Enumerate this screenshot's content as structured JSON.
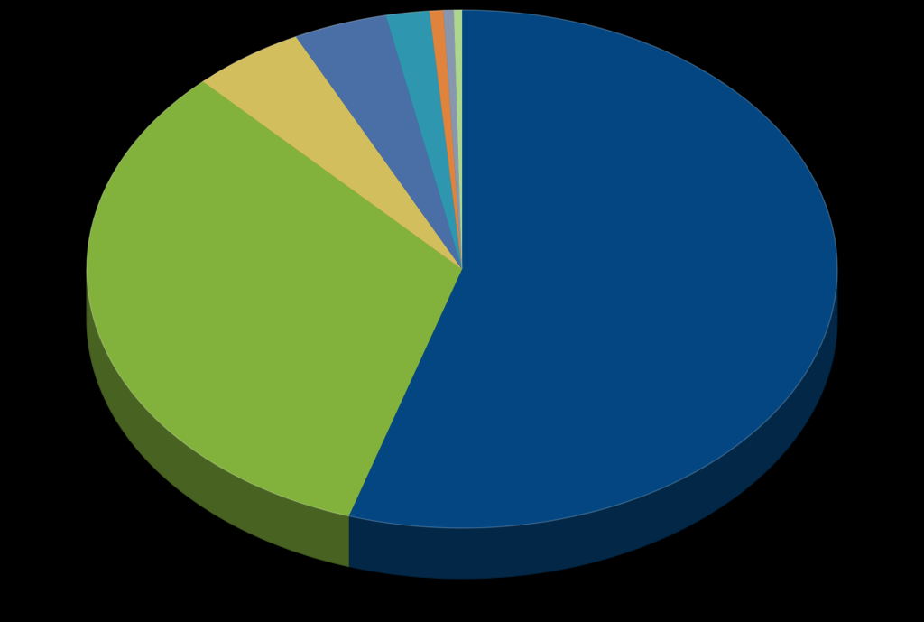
{
  "chart_data": {
    "type": "pie",
    "style": "3d",
    "title": "",
    "legend": "none",
    "data_labels": "none",
    "start_angle_deg": 0,
    "direction": "clockwise",
    "slices": [
      {
        "value": 55.7,
        "color": "#034681"
      },
      {
        "value": 33.5,
        "color": "#82B23C"
      },
      {
        "value": 4.9,
        "color": "#D3BE5E"
      },
      {
        "value": 4.1,
        "color": "#4A6FA6"
      },
      {
        "value": 1.9,
        "color": "#2E96AE"
      },
      {
        "value": 0.6,
        "color": "#E0833C"
      },
      {
        "value": 0.45,
        "color": "#8897AE"
      },
      {
        "value": 0.35,
        "color": "#ADD78E"
      }
    ]
  }
}
